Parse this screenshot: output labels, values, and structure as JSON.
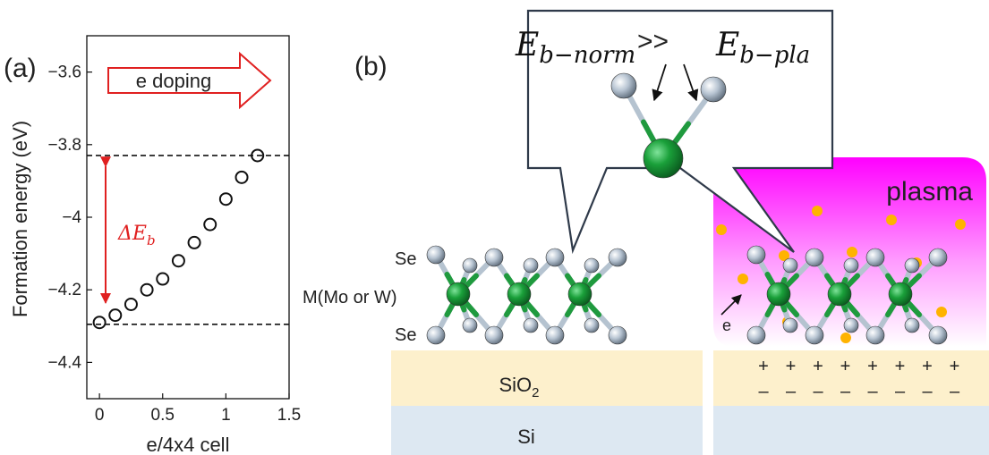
{
  "panel_a": {
    "label": "(a)",
    "arrow_label": "e doping",
    "delta_label_main": "ΔE",
    "delta_label_sub": "b"
  },
  "panel_b": {
    "label": "(b)",
    "eq_e1": "E",
    "eq_sub1": "b−norm",
    "eq_gg": ">>",
    "eq_e2": "E",
    "eq_sub2": "b−pla",
    "se_top": "Se",
    "se_bottom": "Se",
    "metal_label": "M(Mo or W)",
    "plasma": "plasma",
    "electron": "e",
    "sio2_main": "SiO",
    "sio2_sub": "2",
    "si": "Si",
    "plus_signs": [
      "+",
      "+",
      "+",
      "+",
      "+",
      "+",
      "+",
      "+"
    ],
    "minus_signs": [
      "–",
      "–",
      "–",
      "–",
      "–",
      "–",
      "–",
      "–"
    ]
  },
  "colors": {
    "arrow_red": "#e02020",
    "metal_green": "#1aa03a",
    "chalcogen_gray": "#a8b8c8",
    "plasma_magenta": "#ff00ff",
    "electron_orange": "#ffb300",
    "sio2_fill": "#fdf0cc",
    "si_fill": "#dde8f2"
  },
  "chart_data": {
    "type": "scatter",
    "xlabel": "e/4x4 cell",
    "ylabel": "Formation energy (eV)",
    "xlim": [
      -0.1,
      1.5
    ],
    "ylim": [
      -4.5,
      -3.5
    ],
    "xticks": [
      0,
      0.5,
      1,
      1.5
    ],
    "xtick_labels": [
      "0",
      "0.5",
      "1",
      "1.5"
    ],
    "yticks": [
      -3.6,
      -3.8,
      -4,
      -4.2,
      -4.4
    ],
    "ytick_labels": [
      "−3.6",
      "−3.8",
      "−4",
      "−4.2",
      "−4.4"
    ],
    "series": [
      {
        "marker": "open-circle",
        "x": [
          0,
          0.125,
          0.25,
          0.375,
          0.5,
          0.625,
          0.75,
          0.875,
          1.0,
          1.125,
          1.25
        ],
        "y": [
          -4.29,
          -4.27,
          -4.24,
          -4.2,
          -4.17,
          -4.12,
          -4.07,
          -4.02,
          -3.95,
          -3.89,
          -3.83
        ]
      }
    ],
    "hlines": [
      -3.83,
      -4.295
    ],
    "grid": false
  }
}
